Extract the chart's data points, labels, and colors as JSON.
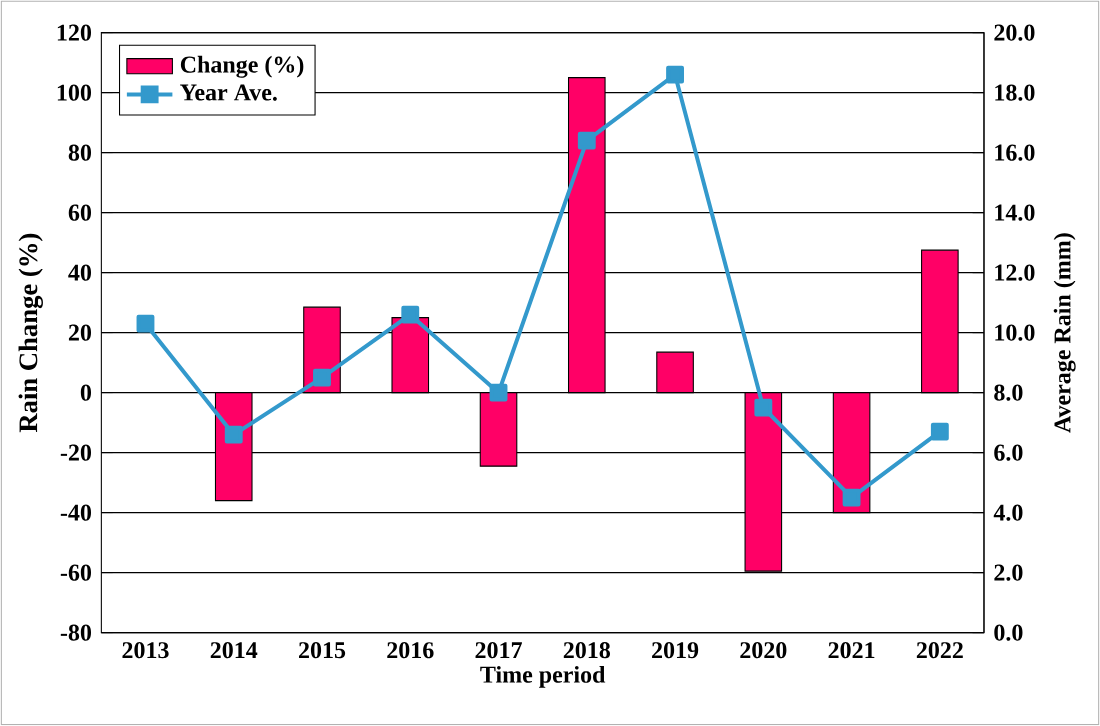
{
  "chart_data": {
    "type": "bar",
    "categories": [
      "2013",
      "2014",
      "2015",
      "2016",
      "2017",
      "2018",
      "2019",
      "2020",
      "2021",
      "2022"
    ],
    "series": [
      {
        "name": "Change (%)",
        "color": "#ff0066",
        "values": [
          null,
          -36,
          28.5,
          25,
          -24.5,
          105,
          13.5,
          -59.5,
          -40,
          47.5
        ]
      },
      {
        "name": "Year Ave.",
        "type": "line",
        "axis": "y2",
        "color": "#3399cc",
        "marker": "square",
        "line_style": "solid",
        "values": [
          10.3,
          6.6,
          8.5,
          10.6,
          8.0,
          16.4,
          18.6,
          7.5,
          4.5,
          6.7
        ]
      }
    ],
    "xlabel": "Time period",
    "ylabel": "Rain Change (%)",
    "y2label": "Average Rain (mm)",
    "ylim": [
      -80,
      120
    ],
    "yticks": [
      -80,
      -60,
      -40,
      -20,
      0,
      20,
      40,
      60,
      80,
      100,
      120
    ],
    "y2lim": [
      0,
      20
    ],
    "y2ticks": [
      {
        "value": 0,
        "label": "0.0"
      },
      {
        "value": 2,
        "label": "2.0"
      },
      {
        "value": 4,
        "label": "4.0"
      },
      {
        "value": 6,
        "label": "6.0"
      },
      {
        "value": 8,
        "label": "8.0"
      },
      {
        "value": 10,
        "label": "10.0"
      },
      {
        "value": 12,
        "label": "12.0"
      },
      {
        "value": 14,
        "label": "14.0"
      },
      {
        "value": 16,
        "label": "16.0"
      },
      {
        "value": 18,
        "label": "18.0"
      },
      {
        "value": 20,
        "label": "20.0"
      }
    ],
    "grid": "y",
    "legend": "top left"
  }
}
